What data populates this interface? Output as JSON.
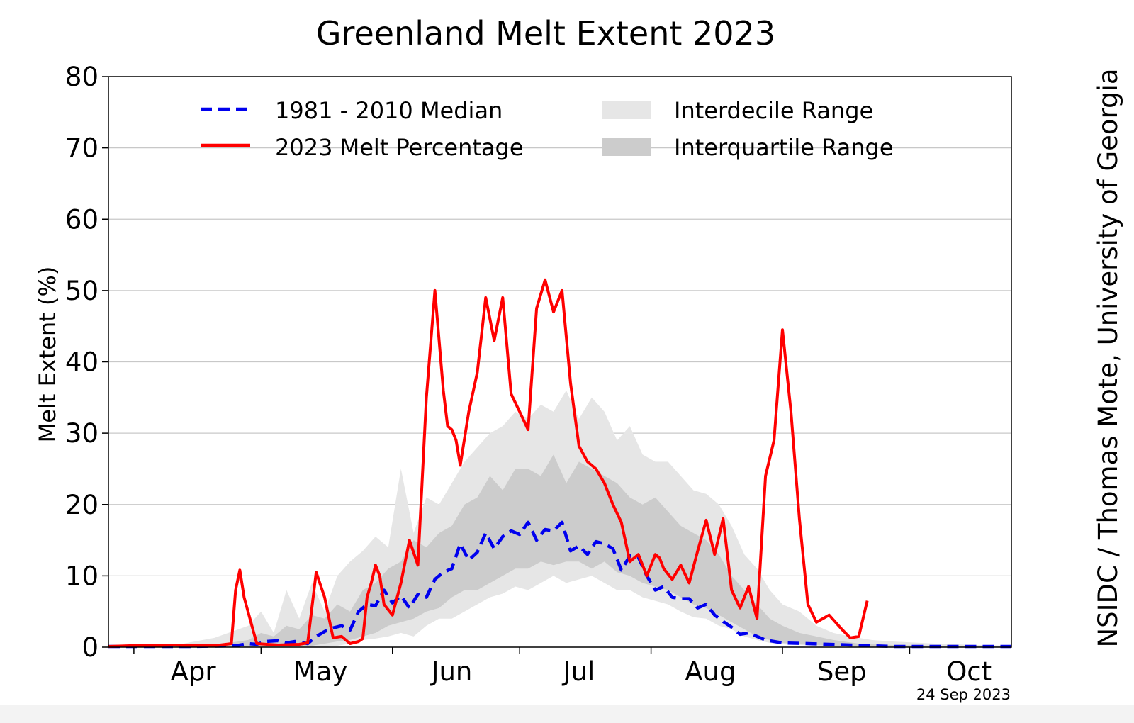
{
  "chart_data": {
    "type": "line",
    "title": "Greenland Melt Extent 2023",
    "ylabel": "Melt Extent (%)",
    "xlabel": "",
    "ylim": [
      0,
      80
    ],
    "yticks": [
      0,
      10,
      20,
      30,
      40,
      50,
      60,
      70,
      80
    ],
    "xlim_days": [
      85,
      298
    ],
    "month_labels": [
      "Apr",
      "May",
      "Jun",
      "Jul",
      "Aug",
      "Sep",
      "Oct"
    ],
    "month_label_days": [
      105,
      135,
      166,
      196,
      227,
      258,
      288
    ],
    "month_boundary_days": [
      91,
      121,
      152,
      182,
      213,
      244,
      274
    ],
    "date_note": "24 Sep 2023",
    "credit": "NSIDC / Thomas Mote, University of Georgia",
    "grid": true,
    "legend_position": "top",
    "legend": [
      {
        "label": "1981 - 2010 Median",
        "style": "dashed",
        "color": "#0000ee"
      },
      {
        "label": "2023 Melt Percentage",
        "style": "solid",
        "color": "#ff0000"
      },
      {
        "label": "Interdecile Range",
        "style": "fill",
        "color": "#e6e6e6"
      },
      {
        "label": "Interquartile Range",
        "style": "fill",
        "color": "#cccccc"
      }
    ],
    "colors": {
      "median": "#0000ee",
      "melt": "#ff0000",
      "interdecile": "#e6e6e6",
      "interquartile": "#cccccc",
      "grid": "#c8c8c8"
    },
    "series": [
      {
        "name": "2023 Melt Percentage",
        "day": [
          85,
          90,
          95,
          100,
          105,
          110,
          114,
          115,
          116,
          117,
          120,
          125,
          130,
          132,
          134,
          136,
          138,
          140,
          142,
          144,
          145,
          146,
          147,
          148,
          149,
          150,
          152,
          154,
          156,
          158,
          160,
          162,
          164,
          165,
          166,
          167,
          168,
          170,
          172,
          174,
          176,
          178,
          180,
          182,
          184,
          186,
          188,
          190,
          192,
          194,
          196,
          198,
          200,
          202,
          204,
          206,
          208,
          210,
          212,
          214,
          215,
          216,
          218,
          220,
          222,
          224,
          226,
          228,
          230,
          232,
          234,
          236,
          238,
          240,
          242,
          244,
          246,
          248,
          250,
          252,
          255,
          258,
          260,
          262,
          264
        ],
        "values": [
          0.1,
          0.2,
          0.2,
          0.3,
          0.2,
          0.2,
          0.5,
          8,
          10.8,
          7,
          0.5,
          0.3,
          0.4,
          0.6,
          10.5,
          7,
          1.3,
          1.5,
          0.5,
          0.8,
          1.2,
          7,
          9,
          11.5,
          10,
          6,
          4.5,
          9,
          15,
          11.5,
          35,
          50,
          36,
          31,
          30.5,
          29,
          25.5,
          33,
          38.5,
          49,
          43,
          49,
          35.5,
          33,
          30.5,
          47.5,
          51.5,
          47,
          50,
          37,
          28.2,
          26,
          25,
          23,
          20,
          17.5,
          12,
          13,
          10,
          13,
          12.5,
          11,
          9.5,
          11.5,
          9,
          13.5,
          17.8,
          13,
          18,
          8,
          5.5,
          8.5,
          4,
          24,
          29,
          44.5,
          33,
          18,
          6,
          3.5,
          4.5,
          2.5,
          1.3,
          1.5,
          6.5
        ]
      },
      {
        "name": "1981 - 2010 Median",
        "day": [
          85,
          95,
          105,
          115,
          118,
          120,
          122,
          125,
          127,
          129,
          132,
          134,
          136,
          138,
          140,
          142,
          144,
          146,
          148,
          150,
          152,
          154,
          156,
          158,
          160,
          162,
          164,
          166,
          168,
          170,
          172,
          174,
          176,
          178,
          180,
          182,
          184,
          186,
          188,
          190,
          192,
          194,
          196,
          198,
          200,
          202,
          204,
          206,
          208,
          210,
          212,
          214,
          216,
          218,
          220,
          222,
          224,
          226,
          228,
          230,
          232,
          234,
          236,
          240,
          244,
          250,
          255,
          260,
          265,
          270,
          275,
          280,
          290,
          298
        ],
        "values": [
          0.1,
          0.1,
          0.1,
          0.2,
          0.5,
          0.4,
          0.8,
          0.9,
          0.6,
          0.8,
          0.5,
          1.5,
          2.2,
          2.7,
          3,
          2.4,
          5,
          6,
          5.8,
          8,
          6.2,
          7.2,
          5.5,
          7.4,
          7,
          9.5,
          10.5,
          11,
          14.5,
          12.2,
          13.3,
          16,
          13.8,
          15.5,
          16.3,
          15.8,
          17.5,
          15,
          16.5,
          16.3,
          17.5,
          13.5,
          14.2,
          13,
          14.8,
          14.5,
          13.8,
          10.8,
          12.8,
          12.6,
          10,
          8,
          8.5,
          7,
          6.8,
          6.8,
          5.5,
          6,
          4.5,
          3.6,
          2.8,
          1.8,
          2,
          1,
          0.6,
          0.5,
          0.4,
          0.3,
          0.2,
          0.1,
          0.1,
          0.1,
          0.1,
          0.1
        ]
      }
    ],
    "interdecile": {
      "day": [
        85,
        100,
        110,
        118,
        121,
        124,
        127,
        130,
        133,
        136,
        139,
        142,
        145,
        148,
        151,
        154,
        157,
        160,
        163,
        166,
        169,
        172,
        175,
        178,
        181,
        184,
        187,
        190,
        193,
        196,
        199,
        202,
        205,
        208,
        211,
        214,
        217,
        220,
        223,
        226,
        229,
        232,
        235,
        238,
        241,
        244,
        248,
        252,
        256,
        260,
        265,
        270,
        280,
        290,
        298
      ],
      "low": [
        0,
        0,
        0,
        0,
        0,
        0,
        0,
        0,
        0,
        0,
        0.2,
        0.5,
        1,
        1.2,
        1.5,
        2,
        1.5,
        3,
        4,
        4,
        5,
        6,
        7,
        7.5,
        8.5,
        8,
        9,
        10,
        9,
        9.5,
        10,
        9,
        8,
        8,
        7,
        6.5,
        6,
        5,
        4.2,
        4,
        3,
        2.5,
        1.5,
        1,
        0.6,
        0.4,
        0.3,
        0.2,
        0.1,
        0.1,
        0,
        0,
        0,
        0,
        0
      ],
      "high": [
        0,
        0.2,
        1.3,
        3,
        5,
        2,
        8,
        4,
        9,
        5,
        10,
        12,
        13.5,
        15.5,
        14,
        25,
        16,
        21,
        20,
        23,
        26,
        28,
        30,
        31,
        33,
        32,
        34,
        33,
        36,
        32,
        35,
        33,
        29,
        31,
        27,
        26,
        26,
        24,
        22,
        21.5,
        20,
        17,
        13,
        11,
        8,
        6,
        5,
        3,
        2,
        1.5,
        1,
        0.8,
        0.5,
        0.3,
        0.2
      ]
    },
    "interquartile": {
      "day": [
        85,
        110,
        118,
        121,
        124,
        127,
        130,
        133,
        136,
        139,
        142,
        145,
        148,
        151,
        154,
        157,
        160,
        163,
        166,
        169,
        172,
        175,
        178,
        181,
        184,
        187,
        190,
        193,
        196,
        199,
        202,
        205,
        208,
        211,
        214,
        217,
        220,
        223,
        226,
        229,
        232,
        235,
        238,
        241,
        244,
        248,
        252,
        256,
        262,
        270,
        280,
        298
      ],
      "low": [
        0,
        0,
        0,
        0,
        0,
        0,
        0.2,
        0.2,
        0.5,
        0.8,
        1,
        1.5,
        2,
        3,
        3.5,
        4,
        5,
        5.5,
        7,
        8,
        8,
        9,
        10,
        11,
        11,
        12,
        11.5,
        12,
        12,
        11,
        12,
        10.5,
        10,
        9,
        8.5,
        8,
        7,
        6,
        5.5,
        4.5,
        3.5,
        2.5,
        1.5,
        1,
        0.6,
        0.4,
        0.3,
        0.2,
        0.1,
        0,
        0,
        0
      ],
      "high": [
        0,
        0.3,
        1,
        2,
        1.5,
        3,
        2.5,
        4.5,
        4,
        6,
        5,
        8,
        9,
        11,
        12,
        15,
        14,
        16,
        17,
        20,
        21,
        24,
        22,
        25,
        25,
        24,
        27,
        23,
        26,
        25,
        24,
        23,
        21,
        20,
        21,
        19,
        17,
        16,
        15,
        13,
        10,
        8,
        6,
        4,
        3,
        2,
        1.5,
        1,
        0.5,
        0.3,
        0.2,
        0.1
      ]
    }
  }
}
